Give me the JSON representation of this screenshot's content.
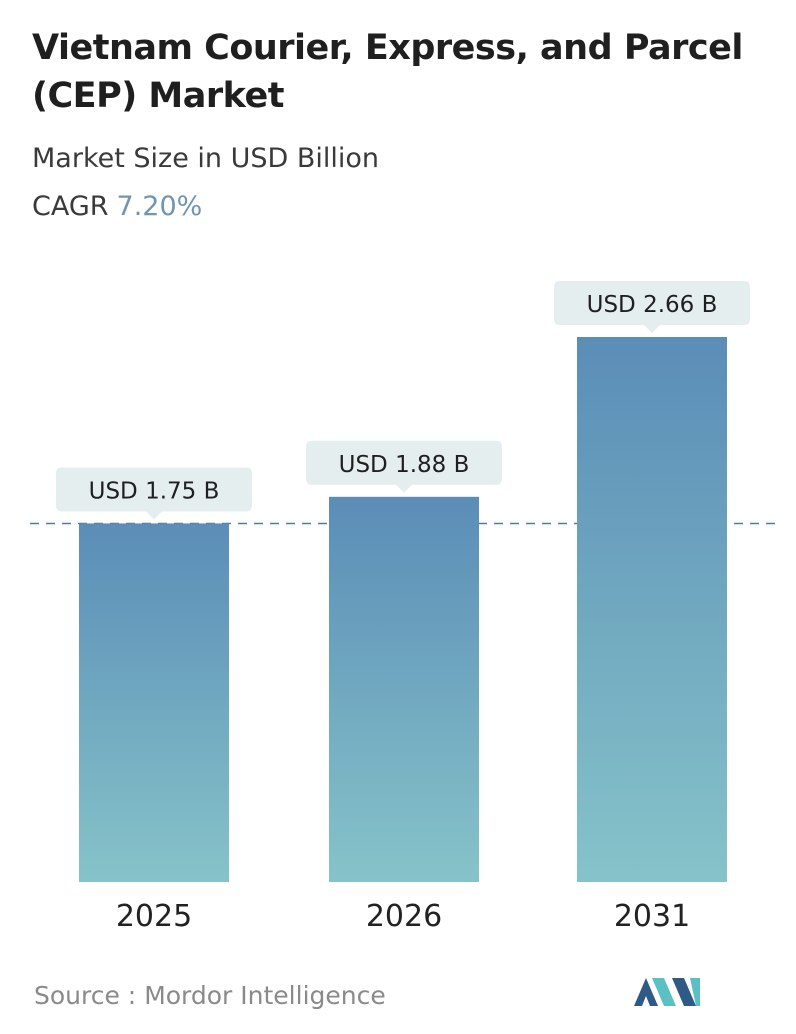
{
  "title": "Vietnam Courier, Express, and Parcel (CEP) Market",
  "subtitle": "Market Size in USD Billion",
  "cagr": {
    "label": "CAGR",
    "value": "7.20%"
  },
  "source": {
    "label": "Source :",
    "value": "Mordor Intelligence"
  },
  "colors": {
    "bar_top": "#5b8db7",
    "bar_bottom": "#86c3c9",
    "label_box": "#e4eeef",
    "reference_line": "#4c7ea3",
    "cagr_value": "#6f95b3",
    "logo_dark": "#2e5a85",
    "logo_light": "#5bc0c4"
  },
  "chart_data": {
    "type": "bar",
    "categories": [
      "2025",
      "2026",
      "2031"
    ],
    "values": [
      1.75,
      1.88,
      2.66
    ],
    "data_labels": [
      "USD 1.75 B",
      "USD 1.88 B",
      "USD 2.66 B"
    ],
    "ylim": [
      0,
      2.66
    ],
    "reference_line": {
      "value": 1.75,
      "style": "dashed"
    },
    "grid": false,
    "legend": "none"
  },
  "logo_icon": "mordor-intelligence-logo-icon"
}
